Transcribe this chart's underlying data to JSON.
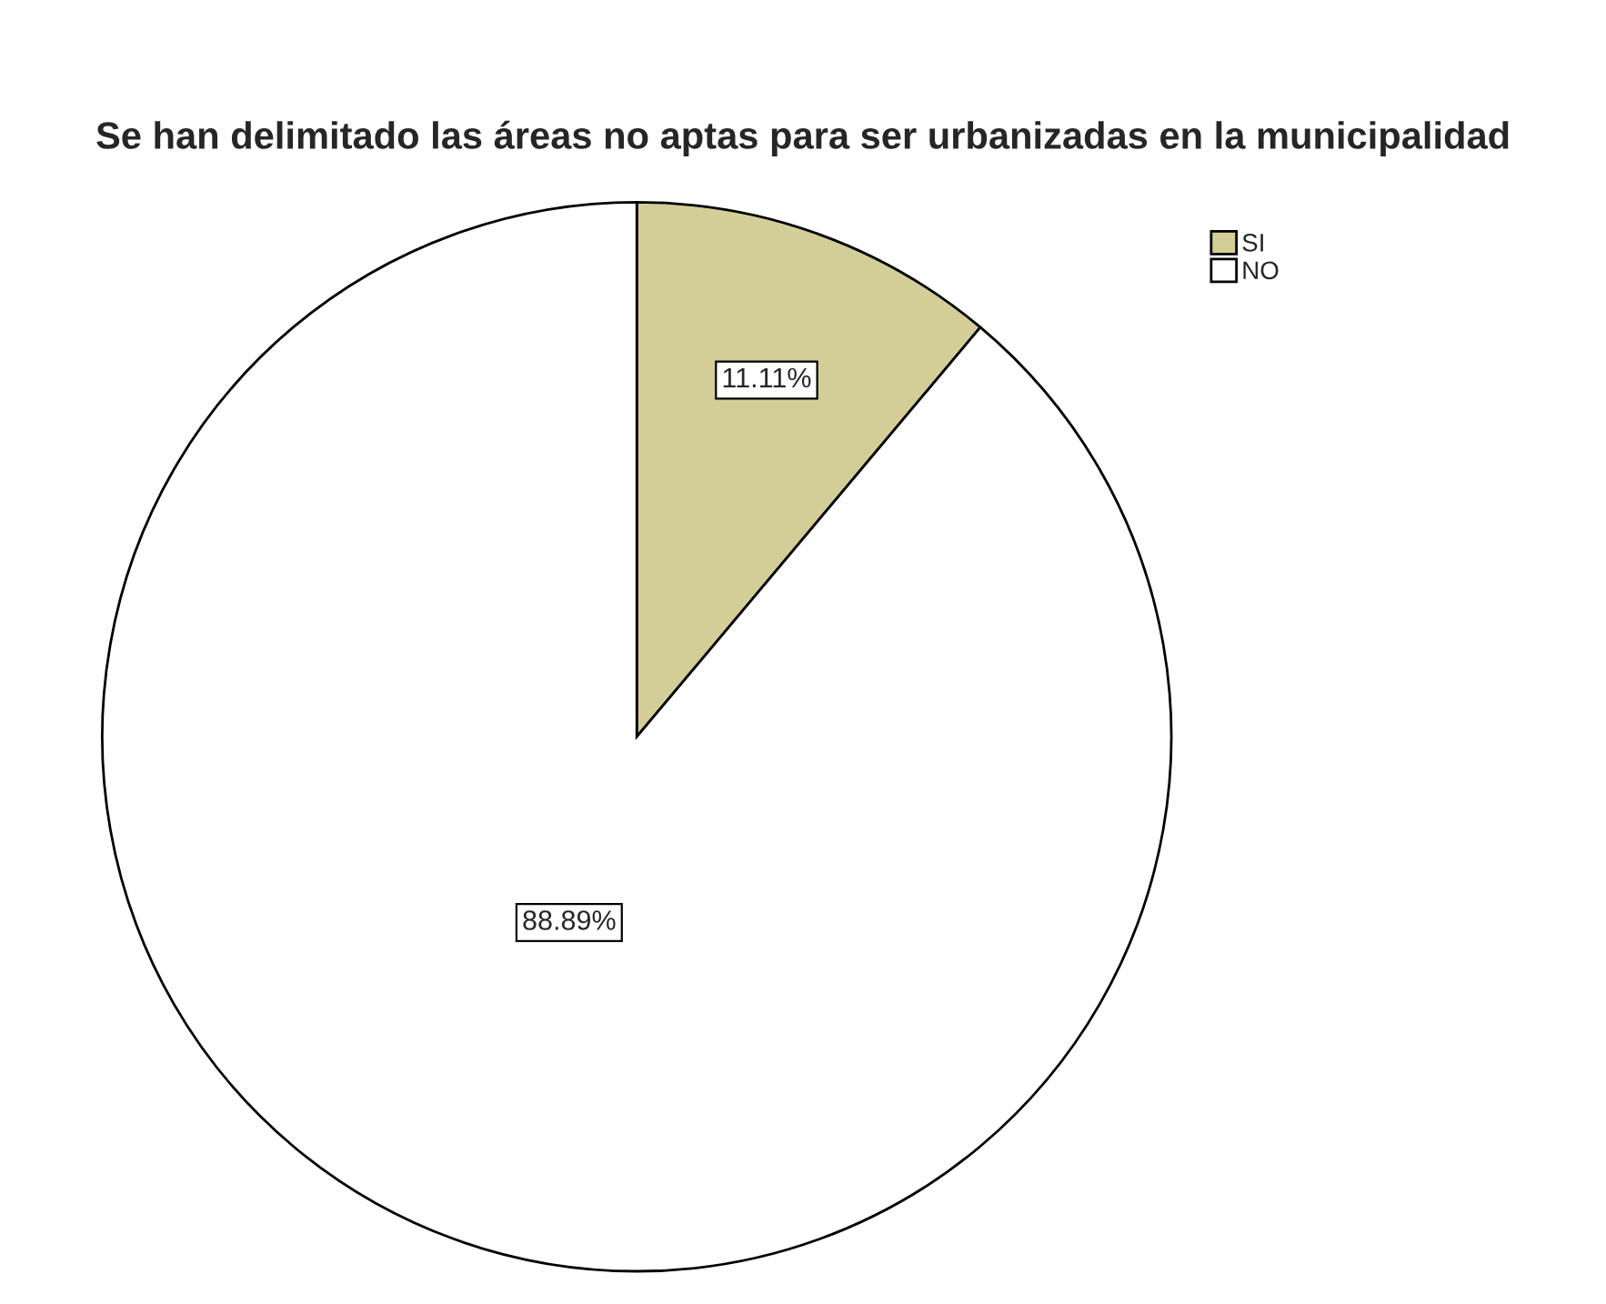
{
  "chart_data": {
    "type": "pie",
    "title": "Se han delimitado las áreas no aptas para ser urbanizadas en la municipalidad",
    "categories": [
      "SI",
      "NO"
    ],
    "values": [
      11.11,
      88.89
    ],
    "colors": [
      "#d3ce97",
      "#ffffff"
    ],
    "value_labels": [
      "11.11%",
      "88.89%"
    ],
    "legend": "top right"
  }
}
